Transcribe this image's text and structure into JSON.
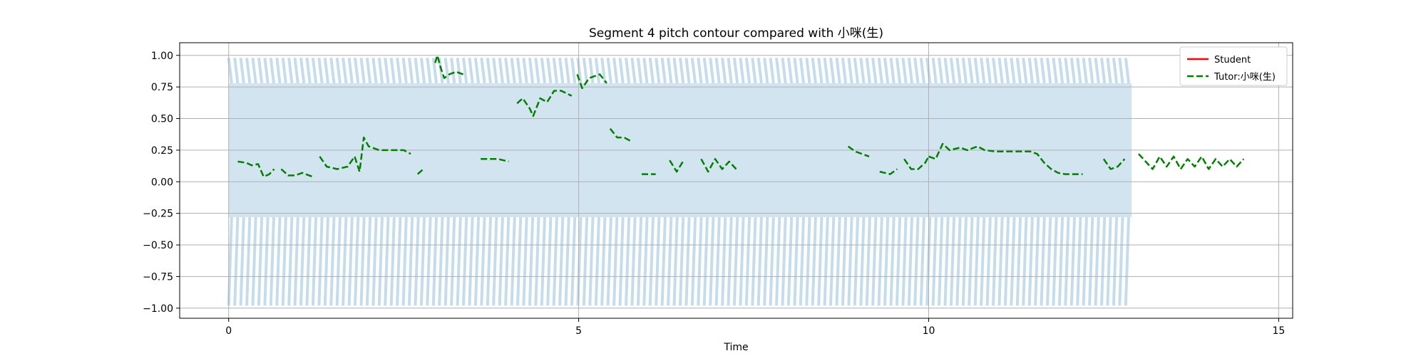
{
  "chart_data": {
    "type": "line",
    "title": "Segment 4 pitch contour compared with 小咪(生)",
    "xlabel": "Time",
    "ylabel": "",
    "xlim": [
      -0.7,
      15.2
    ],
    "ylim": [
      -1.08,
      1.1
    ],
    "x_ticks": [
      0,
      5,
      10,
      15
    ],
    "y_ticks": [
      1.0,
      0.75,
      0.5,
      0.25,
      0.0,
      -0.25,
      -0.5,
      -0.75,
      -1.0
    ],
    "y_tick_labels": [
      "1.00",
      "0.75",
      "0.50",
      "0.25",
      "0.00",
      "−0.25",
      "−0.50",
      "−0.75",
      "−1.00"
    ],
    "grid": true,
    "legend_position": "upper right",
    "waveform": {
      "x_range": [
        0,
        12.9
      ],
      "color": "#1f77b4",
      "opacity": 0.2,
      "inner_band": [
        -0.28,
        0.78
      ],
      "outer_band": [
        -0.98,
        0.98
      ]
    },
    "series": [
      {
        "name": "Student",
        "color": "#ff0000",
        "style": "solid",
        "segments": []
      },
      {
        "name": "Tutor:小咪(生)",
        "color": "#008000",
        "style": "dashed",
        "segments": [
          [
            [
              0.13,
              0.16
            ],
            [
              0.25,
              0.15
            ],
            [
              0.33,
              0.13
            ],
            [
              0.42,
              0.14
            ],
            [
              0.5,
              0.04
            ],
            [
              0.58,
              0.06
            ],
            [
              0.65,
              0.1
            ]
          ],
          [
            [
              0.75,
              0.1
            ],
            [
              0.85,
              0.05
            ],
            [
              0.95,
              0.05
            ],
            [
              1.05,
              0.07
            ],
            [
              1.2,
              0.04
            ]
          ],
          [
            [
              1.3,
              0.2
            ],
            [
              1.4,
              0.12
            ],
            [
              1.55,
              0.1
            ],
            [
              1.7,
              0.12
            ],
            [
              1.8,
              0.2
            ],
            [
              1.87,
              0.08
            ],
            [
              1.93,
              0.35
            ],
            [
              2.0,
              0.28
            ],
            [
              2.15,
              0.25
            ],
            [
              2.35,
              0.25
            ],
            [
              2.5,
              0.25
            ],
            [
              2.6,
              0.22
            ]
          ],
          [
            [
              2.7,
              0.06
            ],
            [
              2.78,
              0.1
            ]
          ],
          [
            [
              2.95,
              0.94
            ],
            [
              2.98,
              1.0
            ],
            [
              3.03,
              0.9
            ],
            [
              3.08,
              0.82
            ],
            [
              3.15,
              0.85
            ],
            [
              3.25,
              0.87
            ],
            [
              3.35,
              0.85
            ]
          ],
          [
            [
              3.6,
              0.18
            ],
            [
              3.75,
              0.18
            ],
            [
              3.85,
              0.18
            ],
            [
              4.0,
              0.16
            ]
          ],
          [
            [
              4.12,
              0.62
            ],
            [
              4.2,
              0.66
            ],
            [
              4.3,
              0.58
            ],
            [
              4.35,
              0.52
            ],
            [
              4.45,
              0.66
            ],
            [
              4.55,
              0.63
            ],
            [
              4.65,
              0.72
            ],
            [
              4.75,
              0.72
            ],
            [
              4.9,
              0.68
            ]
          ],
          [
            [
              4.98,
              0.85
            ],
            [
              5.05,
              0.74
            ],
            [
              5.15,
              0.82
            ],
            [
              5.3,
              0.85
            ],
            [
              5.4,
              0.78
            ]
          ],
          [
            [
              5.45,
              0.42
            ],
            [
              5.55,
              0.35
            ],
            [
              5.65,
              0.35
            ],
            [
              5.75,
              0.32
            ]
          ],
          [
            [
              5.9,
              0.06
            ],
            [
              6.1,
              0.06
            ]
          ],
          [
            [
              6.3,
              0.17
            ],
            [
              6.4,
              0.08
            ],
            [
              6.5,
              0.17
            ]
          ],
          [
            [
              6.75,
              0.18
            ],
            [
              6.85,
              0.08
            ],
            [
              6.95,
              0.18
            ],
            [
              7.05,
              0.1
            ],
            [
              7.15,
              0.16
            ],
            [
              7.25,
              0.1
            ]
          ],
          [
            [
              8.85,
              0.28
            ],
            [
              8.95,
              0.24
            ],
            [
              9.05,
              0.22
            ],
            [
              9.15,
              0.2
            ]
          ],
          [
            [
              9.3,
              0.08
            ],
            [
              9.45,
              0.06
            ],
            [
              9.55,
              0.1
            ]
          ],
          [
            [
              9.65,
              0.18
            ],
            [
              9.75,
              0.1
            ],
            [
              9.85,
              0.1
            ],
            [
              9.95,
              0.15
            ],
            [
              10.0,
              0.2
            ]
          ],
          [
            [
              10.0,
              0.2
            ],
            [
              10.1,
              0.18
            ],
            [
              10.2,
              0.3
            ],
            [
              10.3,
              0.25
            ],
            [
              10.45,
              0.27
            ],
            [
              10.55,
              0.25
            ],
            [
              10.7,
              0.28
            ],
            [
              10.8,
              0.25
            ],
            [
              10.95,
              0.24
            ],
            [
              11.1,
              0.24
            ],
            [
              11.3,
              0.24
            ],
            [
              11.45,
              0.24
            ],
            [
              11.55,
              0.22
            ],
            [
              11.65,
              0.15
            ],
            [
              11.75,
              0.1
            ],
            [
              11.85,
              0.07
            ],
            [
              11.95,
              0.06
            ],
            [
              12.05,
              0.06
            ],
            [
              12.2,
              0.06
            ]
          ],
          [
            [
              12.5,
              0.18
            ],
            [
              12.6,
              0.1
            ],
            [
              12.7,
              0.12
            ],
            [
              12.8,
              0.18
            ]
          ],
          [
            [
              13.0,
              0.22
            ],
            [
              13.1,
              0.16
            ],
            [
              13.2,
              0.1
            ],
            [
              13.3,
              0.2
            ],
            [
              13.4,
              0.12
            ],
            [
              13.5,
              0.2
            ],
            [
              13.6,
              0.1
            ],
            [
              13.7,
              0.18
            ],
            [
              13.8,
              0.12
            ],
            [
              13.9,
              0.2
            ],
            [
              14.0,
              0.1
            ],
            [
              14.1,
              0.18
            ],
            [
              14.2,
              0.12
            ],
            [
              14.3,
              0.18
            ],
            [
              14.4,
              0.12
            ],
            [
              14.5,
              0.18
            ]
          ]
        ]
      }
    ]
  }
}
